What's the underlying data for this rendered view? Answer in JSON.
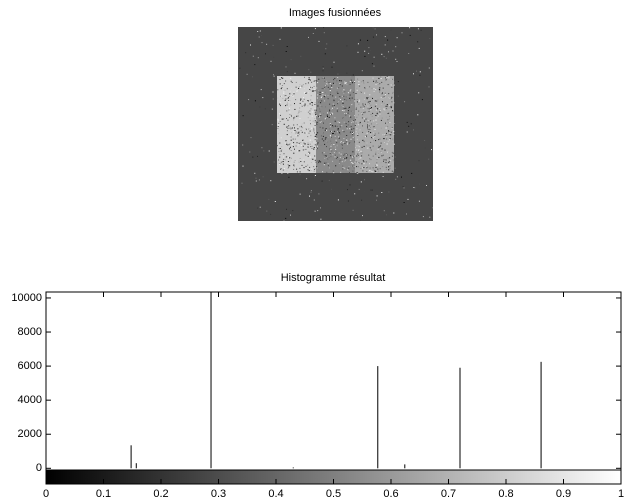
{
  "image_panel": {
    "title": "Images fusionnées"
  },
  "chart_data": {
    "type": "stem",
    "title": "Histogramme résultat",
    "x": [
      0.148,
      0.157,
      0.287,
      0.43,
      0.577,
      0.624,
      0.72,
      0.861
    ],
    "values": [
      1350,
      300,
      10350,
      50,
      6000,
      230,
      5900,
      6250
    ],
    "color": "#000000",
    "xlim": [
      0,
      1
    ],
    "ylim": [
      -100,
      10350
    ],
    "xticks": [
      0,
      0.1,
      0.2,
      0.3,
      0.4,
      0.5,
      0.6,
      0.7,
      0.8,
      0.9,
      1
    ],
    "yticks": [
      0,
      2000,
      4000,
      6000,
      8000,
      10000
    ]
  }
}
